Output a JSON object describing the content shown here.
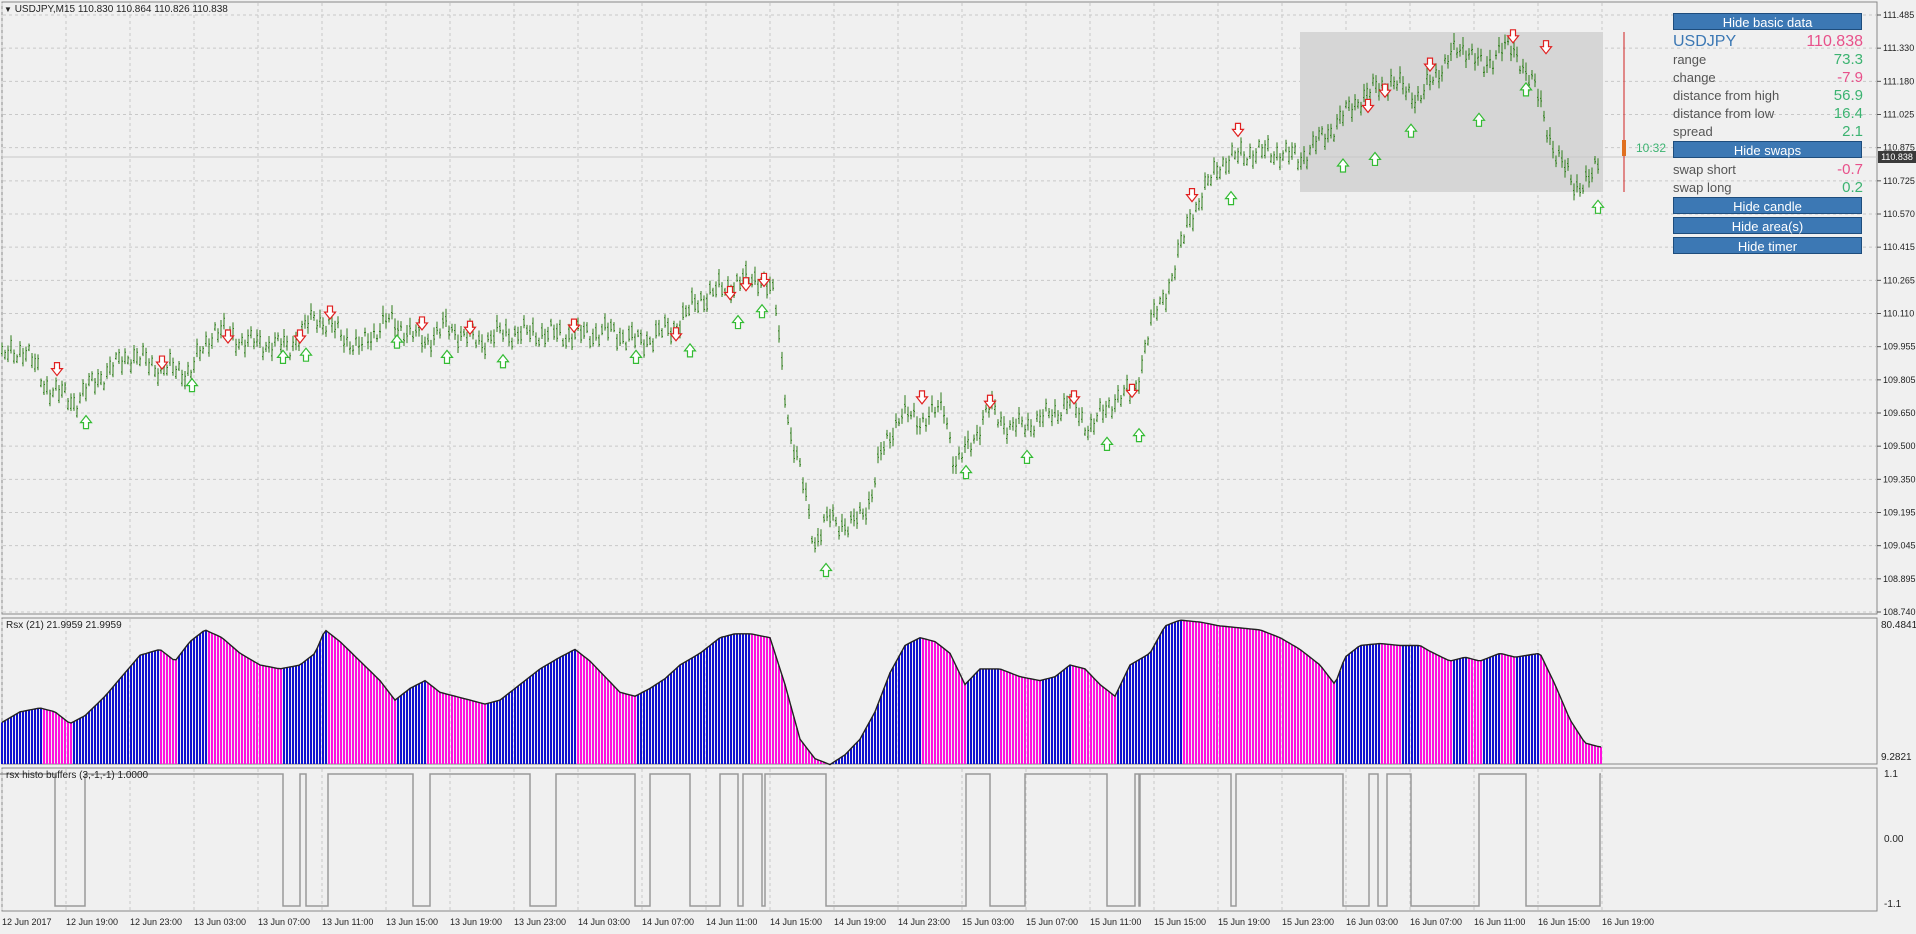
{
  "main_chart": {
    "header": "USDJPY,M15  110.830 110.864 110.826 110.838",
    "price_axis": [
      "111.485",
      "111.330",
      "111.180",
      "111.025",
      "110.875",
      "110.725",
      "110.570",
      "110.415",
      "110.265",
      "110.110",
      "109.955",
      "109.805",
      "109.650",
      "109.500",
      "109.350",
      "109.195",
      "109.045",
      "108.895",
      "108.740"
    ],
    "current_price": "110.838",
    "timer": "10:32",
    "colors": {
      "bars": "#2e7d1a",
      "down_arrow": "#e02020",
      "up_arrow": "#33bb33",
      "shade": "#d4d4d4",
      "price_line": "#d0d0d0"
    }
  },
  "rsx_panel": {
    "header": "Rsx (21) 21.9959 21.9959",
    "axis_top": "80.4841",
    "axis_bottom": "9.2821",
    "colors": {
      "up": "#1010d0",
      "down": "#ff10e0"
    }
  },
  "histo_panel": {
    "header": "rsx histo buffers (3,-1,-1) 1.0000",
    "axis": [
      "1.1",
      "0.00",
      "-1.1"
    ]
  },
  "time_axis": [
    "12 Jun 2017",
    "12 Jun 19:00",
    "12 Jun 23:00",
    "13 Jun 03:00",
    "13 Jun 07:00",
    "13 Jun 11:00",
    "13 Jun 15:00",
    "13 Jun 19:00",
    "13 Jun 23:00",
    "14 Jun 03:00",
    "14 Jun 07:00",
    "14 Jun 11:00",
    "14 Jun 15:00",
    "14 Jun 19:00",
    "14 Jun 23:00",
    "15 Jun 03:00",
    "15 Jun 07:00",
    "15 Jun 11:00",
    "15 Jun 15:00",
    "15 Jun 19:00",
    "15 Jun 23:00",
    "16 Jun 03:00",
    "16 Jun 07:00",
    "16 Jun 11:00",
    "16 Jun 15:00",
    "16 Jun 19:00"
  ],
  "info_panel": {
    "btn_hide_basic": "Hide basic data",
    "symbol": "USDJPY",
    "price": "110.838",
    "rows": [
      {
        "label": "range",
        "value": "73.3",
        "sign": "pos"
      },
      {
        "label": "change",
        "value": "-7.9",
        "sign": "neg"
      },
      {
        "label": "distance from high",
        "value": "56.9",
        "sign": "pos"
      },
      {
        "label": "distance from low",
        "value": "16.4",
        "sign": "pos"
      },
      {
        "label": "spread",
        "value": "2.1",
        "sign": "pos"
      }
    ],
    "btn_hide_swaps": "Hide swaps",
    "swaps": [
      {
        "label": "swap short",
        "value": "-0.7",
        "sign": "neg"
      },
      {
        "label": "swap long",
        "value": "0.2",
        "sign": "pos"
      }
    ],
    "btn_hide_candle": "Hide candle",
    "btn_hide_areas": "Hide area(s)",
    "btn_hide_timer": "Hide timer"
  },
  "chart_data": {
    "type": "line",
    "price_anchors": [
      [
        0,
        109.9
      ],
      [
        25,
        109.95
      ],
      [
        45,
        109.78
      ],
      [
        75,
        109.7
      ],
      [
        95,
        109.8
      ],
      [
        130,
        109.92
      ],
      [
        160,
        109.86
      ],
      [
        190,
        109.84
      ],
      [
        215,
        110.04
      ],
      [
        245,
        109.98
      ],
      [
        290,
        109.96
      ],
      [
        315,
        110.1
      ],
      [
        330,
        110.05
      ],
      [
        360,
        109.95
      ],
      [
        385,
        110.08
      ],
      [
        400,
        110.05
      ],
      [
        425,
        109.98
      ],
      [
        445,
        110.05
      ],
      [
        480,
        109.98
      ],
      [
        500,
        110.02
      ],
      [
        540,
        110.02
      ],
      [
        575,
        110.01
      ],
      [
        610,
        110.03
      ],
      [
        640,
        109.98
      ],
      [
        675,
        110.05
      ],
      [
        700,
        110.18
      ],
      [
        730,
        110.24
      ],
      [
        760,
        110.28
      ],
      [
        775,
        110.18
      ],
      [
        790,
        109.55
      ],
      [
        805,
        109.3
      ],
      [
        815,
        109.05
      ],
      [
        830,
        109.18
      ],
      [
        850,
        109.12
      ],
      [
        870,
        109.25
      ],
      [
        880,
        109.45
      ],
      [
        900,
        109.65
      ],
      [
        920,
        109.62
      ],
      [
        945,
        109.68
      ],
      [
        955,
        109.4
      ],
      [
        975,
        109.55
      ],
      [
        990,
        109.68
      ],
      [
        1010,
        109.58
      ],
      [
        1040,
        109.62
      ],
      [
        1070,
        109.7
      ],
      [
        1090,
        109.58
      ],
      [
        1115,
        109.72
      ],
      [
        1135,
        109.75
      ],
      [
        1150,
        110.05
      ],
      [
        1170,
        110.25
      ],
      [
        1190,
        110.55
      ],
      [
        1220,
        110.8
      ],
      [
        1250,
        110.85
      ],
      [
        1280,
        110.85
      ],
      [
        1300,
        110.82
      ],
      [
        1330,
        110.95
      ],
      [
        1360,
        111.1
      ],
      [
        1390,
        111.18
      ],
      [
        1420,
        111.1
      ],
      [
        1450,
        111.3
      ],
      [
        1470,
        111.33
      ],
      [
        1485,
        111.22
      ],
      [
        1500,
        111.35
      ],
      [
        1520,
        111.28
      ],
      [
        1535,
        111.15
      ],
      [
        1555,
        110.85
      ],
      [
        1575,
        110.7
      ],
      [
        1590,
        110.72
      ],
      [
        1600,
        110.82
      ]
    ],
    "down_arrows": [
      [
        57,
        109.85
      ],
      [
        162,
        109.88
      ],
      [
        228,
        110.0
      ],
      [
        300,
        110.0
      ],
      [
        330,
        110.11
      ],
      [
        422,
        110.06
      ],
      [
        470,
        110.04
      ],
      [
        574,
        110.05
      ],
      [
        676,
        110.01
      ],
      [
        730,
        110.2
      ],
      [
        746,
        110.24
      ],
      [
        764,
        110.26
      ],
      [
        922,
        109.72
      ],
      [
        990,
        109.7
      ],
      [
        1074,
        109.72
      ],
      [
        1132,
        109.75
      ],
      [
        1192,
        110.65
      ],
      [
        1238,
        110.95
      ],
      [
        1368,
        111.06
      ],
      [
        1385,
        111.13
      ],
      [
        1430,
        111.25
      ],
      [
        1513,
        111.38
      ],
      [
        1546,
        111.33
      ]
    ],
    "up_arrows": [
      [
        86,
        109.62
      ],
      [
        192,
        109.79
      ],
      [
        283,
        109.92
      ],
      [
        306,
        109.93
      ],
      [
        397,
        109.99
      ],
      [
        447,
        109.92
      ],
      [
        503,
        109.9
      ],
      [
        636,
        109.92
      ],
      [
        690,
        109.95
      ],
      [
        738,
        110.08
      ],
      [
        762,
        110.13
      ],
      [
        826,
        108.94
      ],
      [
        966,
        109.39
      ],
      [
        1027,
        109.46
      ],
      [
        1107,
        109.52
      ],
      [
        1139,
        109.56
      ],
      [
        1231,
        110.65
      ],
      [
        1343,
        110.8
      ],
      [
        1375,
        110.83
      ],
      [
        1411,
        110.96
      ],
      [
        1479,
        111.01
      ],
      [
        1526,
        111.15
      ],
      [
        1598,
        110.61
      ]
    ],
    "rsx_anchors": [
      [
        0,
        30
      ],
      [
        20,
        36
      ],
      [
        40,
        38
      ],
      [
        55,
        36
      ],
      [
        70,
        30
      ],
      [
        85,
        34
      ],
      [
        105,
        44
      ],
      [
        125,
        56
      ],
      [
        140,
        65
      ],
      [
        160,
        68
      ],
      [
        175,
        62
      ],
      [
        190,
        72
      ],
      [
        205,
        78
      ],
      [
        222,
        74
      ],
      [
        240,
        66
      ],
      [
        260,
        60
      ],
      [
        280,
        58
      ],
      [
        300,
        60
      ],
      [
        315,
        66
      ],
      [
        325,
        78
      ],
      [
        340,
        72
      ],
      [
        360,
        62
      ],
      [
        380,
        52
      ],
      [
        395,
        42
      ],
      [
        410,
        48
      ],
      [
        425,
        52
      ],
      [
        440,
        46
      ],
      [
        455,
        44
      ],
      [
        470,
        42
      ],
      [
        485,
        40
      ],
      [
        500,
        42
      ],
      [
        520,
        50
      ],
      [
        540,
        58
      ],
      [
        560,
        64
      ],
      [
        575,
        68
      ],
      [
        590,
        62
      ],
      [
        605,
        54
      ],
      [
        620,
        46
      ],
      [
        635,
        44
      ],
      [
        650,
        48
      ],
      [
        665,
        53
      ],
      [
        680,
        60
      ],
      [
        700,
        66
      ],
      [
        720,
        74
      ],
      [
        735,
        76
      ],
      [
        750,
        76
      ],
      [
        770,
        74
      ],
      [
        785,
        50
      ],
      [
        800,
        22
      ],
      [
        815,
        12
      ],
      [
        830,
        9
      ],
      [
        845,
        14
      ],
      [
        860,
        22
      ],
      [
        875,
        36
      ],
      [
        890,
        56
      ],
      [
        905,
        70
      ],
      [
        920,
        74
      ],
      [
        935,
        72
      ],
      [
        950,
        66
      ],
      [
        965,
        50
      ],
      [
        980,
        58
      ],
      [
        1000,
        58
      ],
      [
        1020,
        54
      ],
      [
        1040,
        52
      ],
      [
        1055,
        54
      ],
      [
        1070,
        60
      ],
      [
        1085,
        58
      ],
      [
        1100,
        50
      ],
      [
        1115,
        44
      ],
      [
        1130,
        60
      ],
      [
        1150,
        66
      ],
      [
        1165,
        80
      ],
      [
        1180,
        83
      ],
      [
        1200,
        82
      ],
      [
        1220,
        80
      ],
      [
        1240,
        79
      ],
      [
        1260,
        78
      ],
      [
        1280,
        74
      ],
      [
        1300,
        68
      ],
      [
        1320,
        60
      ],
      [
        1335,
        50
      ],
      [
        1345,
        64
      ],
      [
        1360,
        70
      ],
      [
        1380,
        71
      ],
      [
        1400,
        70
      ],
      [
        1420,
        70
      ],
      [
        1430,
        67
      ],
      [
        1450,
        62
      ],
      [
        1465,
        64
      ],
      [
        1480,
        62
      ],
      [
        1500,
        66
      ],
      [
        1515,
        64
      ],
      [
        1540,
        66
      ],
      [
        1555,
        50
      ],
      [
        1570,
        32
      ],
      [
        1585,
        20
      ],
      [
        1600,
        18
      ]
    ],
    "histo_intervals": [
      [
        0,
        55,
        1
      ],
      [
        55,
        85,
        -1
      ],
      [
        85,
        283,
        1
      ],
      [
        283,
        300,
        -1
      ],
      [
        300,
        306,
        1
      ],
      [
        306,
        328,
        -1
      ],
      [
        328,
        413,
        1
      ],
      [
        413,
        430,
        -1
      ],
      [
        430,
        530,
        1
      ],
      [
        530,
        556,
        -1
      ],
      [
        556,
        635,
        1
      ],
      [
        635,
        650,
        -1
      ],
      [
        650,
        690,
        1
      ],
      [
        690,
        720,
        -1
      ],
      [
        720,
        738,
        1
      ],
      [
        738,
        743,
        -1
      ],
      [
        743,
        762,
        1
      ],
      [
        762,
        765,
        -1
      ],
      [
        765,
        826,
        1
      ],
      [
        826,
        966,
        -1
      ],
      [
        966,
        990,
        1
      ],
      [
        990,
        1025,
        -1
      ],
      [
        1025,
        1107,
        1
      ],
      [
        1107,
        1135,
        -1
      ],
      [
        1135,
        1139,
        1
      ],
      [
        1139,
        1140,
        -1
      ],
      [
        1140,
        1231,
        1
      ],
      [
        1231,
        1236,
        -1
      ],
      [
        1236,
        1343,
        1
      ],
      [
        1343,
        1369,
        -1
      ],
      [
        1369,
        1378,
        1
      ],
      [
        1378,
        1387,
        -1
      ],
      [
        1387,
        1411,
        1
      ],
      [
        1411,
        1479,
        -1
      ],
      [
        1479,
        1526,
        1
      ],
      [
        1526,
        1600,
        -1
      ],
      [
        1600,
        1601,
        1
      ]
    ]
  }
}
